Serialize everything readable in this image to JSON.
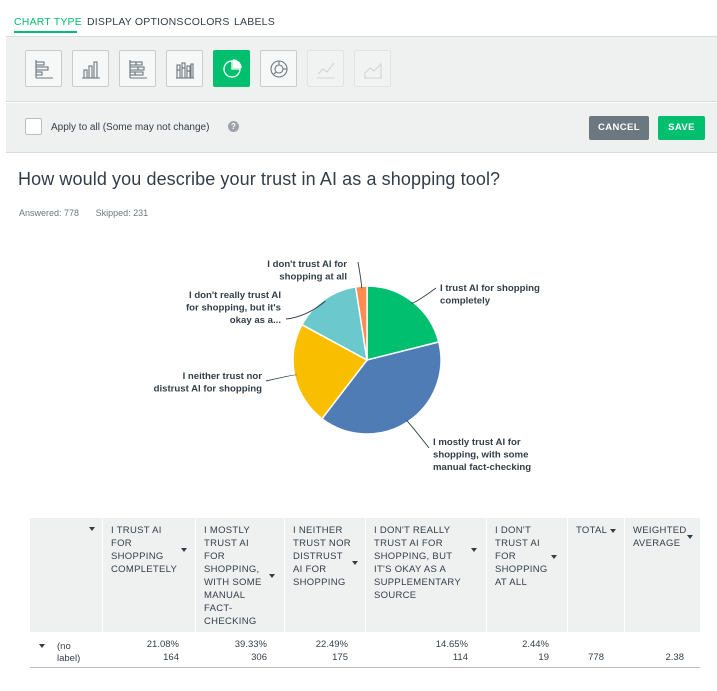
{
  "tabs": [
    {
      "label": "CHART TYPE",
      "active": true
    },
    {
      "label": "DISPLAY OPTIONS",
      "active": false
    },
    {
      "label": "COLORS",
      "active": false
    },
    {
      "label": "LABELS",
      "active": false
    }
  ],
  "chart_types": [
    {
      "icon": "horizontal-bar-chart-icon",
      "active": false,
      "disabled": false
    },
    {
      "icon": "vertical-bar-chart-icon",
      "active": false,
      "disabled": false
    },
    {
      "icon": "stacked-horizontal-bar-chart-icon",
      "active": false,
      "disabled": false
    },
    {
      "icon": "stacked-vertical-bar-chart-icon",
      "active": false,
      "disabled": false
    },
    {
      "icon": "pie-chart-icon",
      "active": true,
      "disabled": false
    },
    {
      "icon": "donut-chart-icon",
      "active": false,
      "disabled": false
    },
    {
      "icon": "line-chart-icon",
      "active": false,
      "disabled": true
    },
    {
      "icon": "area-chart-icon",
      "active": false,
      "disabled": true
    }
  ],
  "options": {
    "apply_to_all_label": "Apply to all (Some may not change)",
    "apply_to_all_checked": false,
    "help_glyph": "?",
    "cancel_label": "CANCEL",
    "save_label": "SAVE"
  },
  "question": {
    "title": "How would you describe your trust in AI as a shopping tool?",
    "answered": "Answered: 778",
    "skipped": "Skipped: 231"
  },
  "colors": {
    "accent": "#00bf6f",
    "slices": [
      "#00bf6f",
      "#507cb6",
      "#f9be00",
      "#6bc8cd",
      "#ff8b4f"
    ]
  },
  "chart_data": {
    "type": "pie",
    "categories": [
      "I trust AI for shopping completely",
      "I mostly trust AI for shopping, with some manual fact-checking",
      "I neither trust nor distrust AI for shopping",
      "I don't really trust AI for shopping, but it's okay as a...",
      "I don't trust AI for shopping at all"
    ],
    "values": [
      21.08,
      39.33,
      22.49,
      14.65,
      2.44
    ],
    "labels": [
      [
        "I trust AI for shopping",
        "completely"
      ],
      [
        "I mostly trust AI for",
        "shopping, with some",
        "manual fact-checking"
      ],
      [
        "I neither trust nor",
        "distrust AI for shopping"
      ],
      [
        "I don't really trust AI",
        "for shopping, but it's",
        "okay as a..."
      ],
      [
        "I don't trust AI for",
        "shopping at all"
      ]
    ]
  },
  "table": {
    "headers": [
      "I TRUST AI\nFOR\nSHOPPING\nCOMPLETELY",
      "I MOSTLY\nTRUST AI\nFOR\nSHOPPING,\nWITH SOME\nMANUAL\nFACT-\nCHECKING",
      "I NEITHER\nTRUST NOR\nDISTRUST\nAI FOR\nSHOPPING",
      "I DON'T REALLY\nTRUST AI FOR\nSHOPPING, BUT\nIT'S OKAY AS A\nSUPPLEMENTARY\nSOURCE",
      "I DON'T\nTRUST AI\nFOR\nSHOPPING\nAT ALL",
      "TOTAL",
      "WEIGHTED\nAVERAGE"
    ],
    "row": {
      "label": "(no\nlabel)",
      "percents": [
        "21.08%",
        "39.33%",
        "22.49%",
        "14.65%",
        "2.44%"
      ],
      "counts": [
        "164",
        "306",
        "175",
        "114",
        "19"
      ],
      "total": "778",
      "weighted_average": "2.38"
    }
  }
}
